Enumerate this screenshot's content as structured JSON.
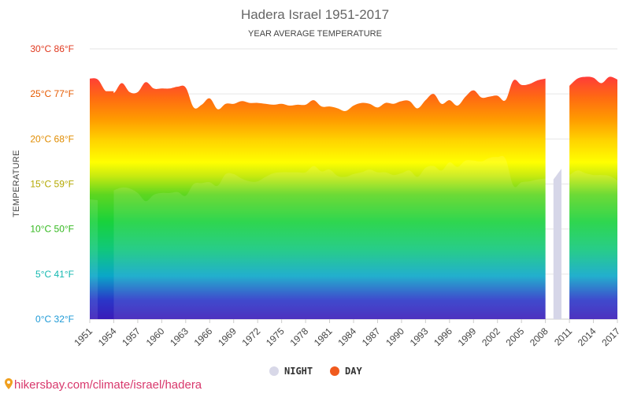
{
  "chart_data": {
    "type": "area",
    "title": "Hadera Israel 1951-2017",
    "subtitle": "YEAR AVERAGE TEMPERATURE",
    "ylabel": "TEMPERATURE",
    "ylim": [
      0,
      30
    ],
    "y_ticks": [
      {
        "value": 0,
        "label": "0°C 32°F",
        "color": "#1e9ad6"
      },
      {
        "value": 5,
        "label": "5°C 41°F",
        "color": "#14b8b0"
      },
      {
        "value": 10,
        "label": "10°C 50°F",
        "color": "#33b81e"
      },
      {
        "value": 15,
        "label": "15°C 59°F",
        "color": "#b3a800"
      },
      {
        "value": 20,
        "label": "20°C 68°F",
        "color": "#e08c00"
      },
      {
        "value": 25,
        "label": "25°C 77°F",
        "color": "#e65a00"
      },
      {
        "value": 30,
        "label": "30°C 86°F",
        "color": "#e0391f"
      }
    ],
    "x_tick_labels": [
      "1951",
      "1954",
      "1957",
      "1960",
      "1963",
      "1966",
      "1969",
      "1972",
      "1975",
      "1978",
      "1981",
      "1984",
      "1987",
      "1990",
      "1993",
      "1996",
      "1999",
      "2002",
      "2005",
      "2008",
      "2011",
      "2014",
      "2017"
    ],
    "x": [
      1951,
      1952,
      1953,
      1954,
      1955,
      1956,
      1957,
      1958,
      1959,
      1960,
      1961,
      1962,
      1963,
      1964,
      1965,
      1966,
      1967,
      1968,
      1969,
      1970,
      1971,
      1972,
      1973,
      1974,
      1975,
      1976,
      1977,
      1978,
      1979,
      1980,
      1981,
      1982,
      1983,
      1984,
      1985,
      1986,
      1987,
      1988,
      1989,
      1990,
      1991,
      1992,
      1993,
      1994,
      1995,
      1996,
      1997,
      1998,
      1999,
      2000,
      2001,
      2002,
      2003,
      2004,
      2005,
      2006,
      2007,
      2008,
      2009,
      2010,
      2011,
      2012,
      2013,
      2014,
      2015,
      2016,
      2017
    ],
    "series": [
      {
        "name": "DAY",
        "color": "#f05a1e",
        "values": [
          26.7,
          26.6,
          25.3,
          25.1,
          26.2,
          25.2,
          25.2,
          26.3,
          25.6,
          25.6,
          25.6,
          25.8,
          25.7,
          23.5,
          23.8,
          24.5,
          23.3,
          23.9,
          23.9,
          24.2,
          24.0,
          24.0,
          23.9,
          23.8,
          23.9,
          23.7,
          23.8,
          23.8,
          24.3,
          23.6,
          23.6,
          23.4,
          23.1,
          23.7,
          24.0,
          23.9,
          23.5,
          24.0,
          23.9,
          24.2,
          24.2,
          23.4,
          24.3,
          25.0,
          23.9,
          24.3,
          23.7,
          24.7,
          25.4,
          24.6,
          24.7,
          24.8,
          24.3,
          26.5,
          26.0,
          26.1,
          26.5,
          26.7,
          null,
          null,
          25.9,
          26.7,
          26.9,
          26.8,
          26.2,
          26.9,
          26.6
        ]
      },
      {
        "name": "NIGHT",
        "color": "#d8d8e8",
        "values": [
          13.3,
          13.2,
          null,
          14.3,
          14.6,
          14.5,
          14.0,
          13.1,
          13.8,
          14.0,
          14.0,
          14.1,
          13.7,
          15.0,
          15.1,
          15.2,
          14.8,
          16.1,
          16.1,
          15.6,
          15.3,
          15.3,
          15.8,
          16.2,
          16.3,
          16.3,
          16.3,
          16.3,
          17.0,
          16.4,
          16.6,
          15.9,
          15.8,
          16.1,
          16.3,
          16.6,
          16.3,
          16.3,
          16.0,
          16.2,
          16.5,
          15.8,
          16.8,
          17.0,
          16.5,
          17.4,
          16.9,
          17.6,
          17.6,
          17.5,
          17.9,
          18.0,
          17.8,
          14.8,
          15.2,
          15.3,
          15.5,
          15.6,
          15.5,
          16.7,
          16.0,
          16.5,
          16.2,
          16.0,
          16.0,
          15.9,
          15.4
        ]
      }
    ],
    "legend": {
      "position": "bottom-center",
      "items": [
        {
          "name": "NIGHT",
          "color": "#d8d8e8"
        },
        {
          "name": "DAY",
          "color": "#f05a1e"
        }
      ]
    },
    "grid": true
  },
  "source_text": "hikersbay.com/climate/israel/hadera",
  "source_icon": "location-pin-icon"
}
